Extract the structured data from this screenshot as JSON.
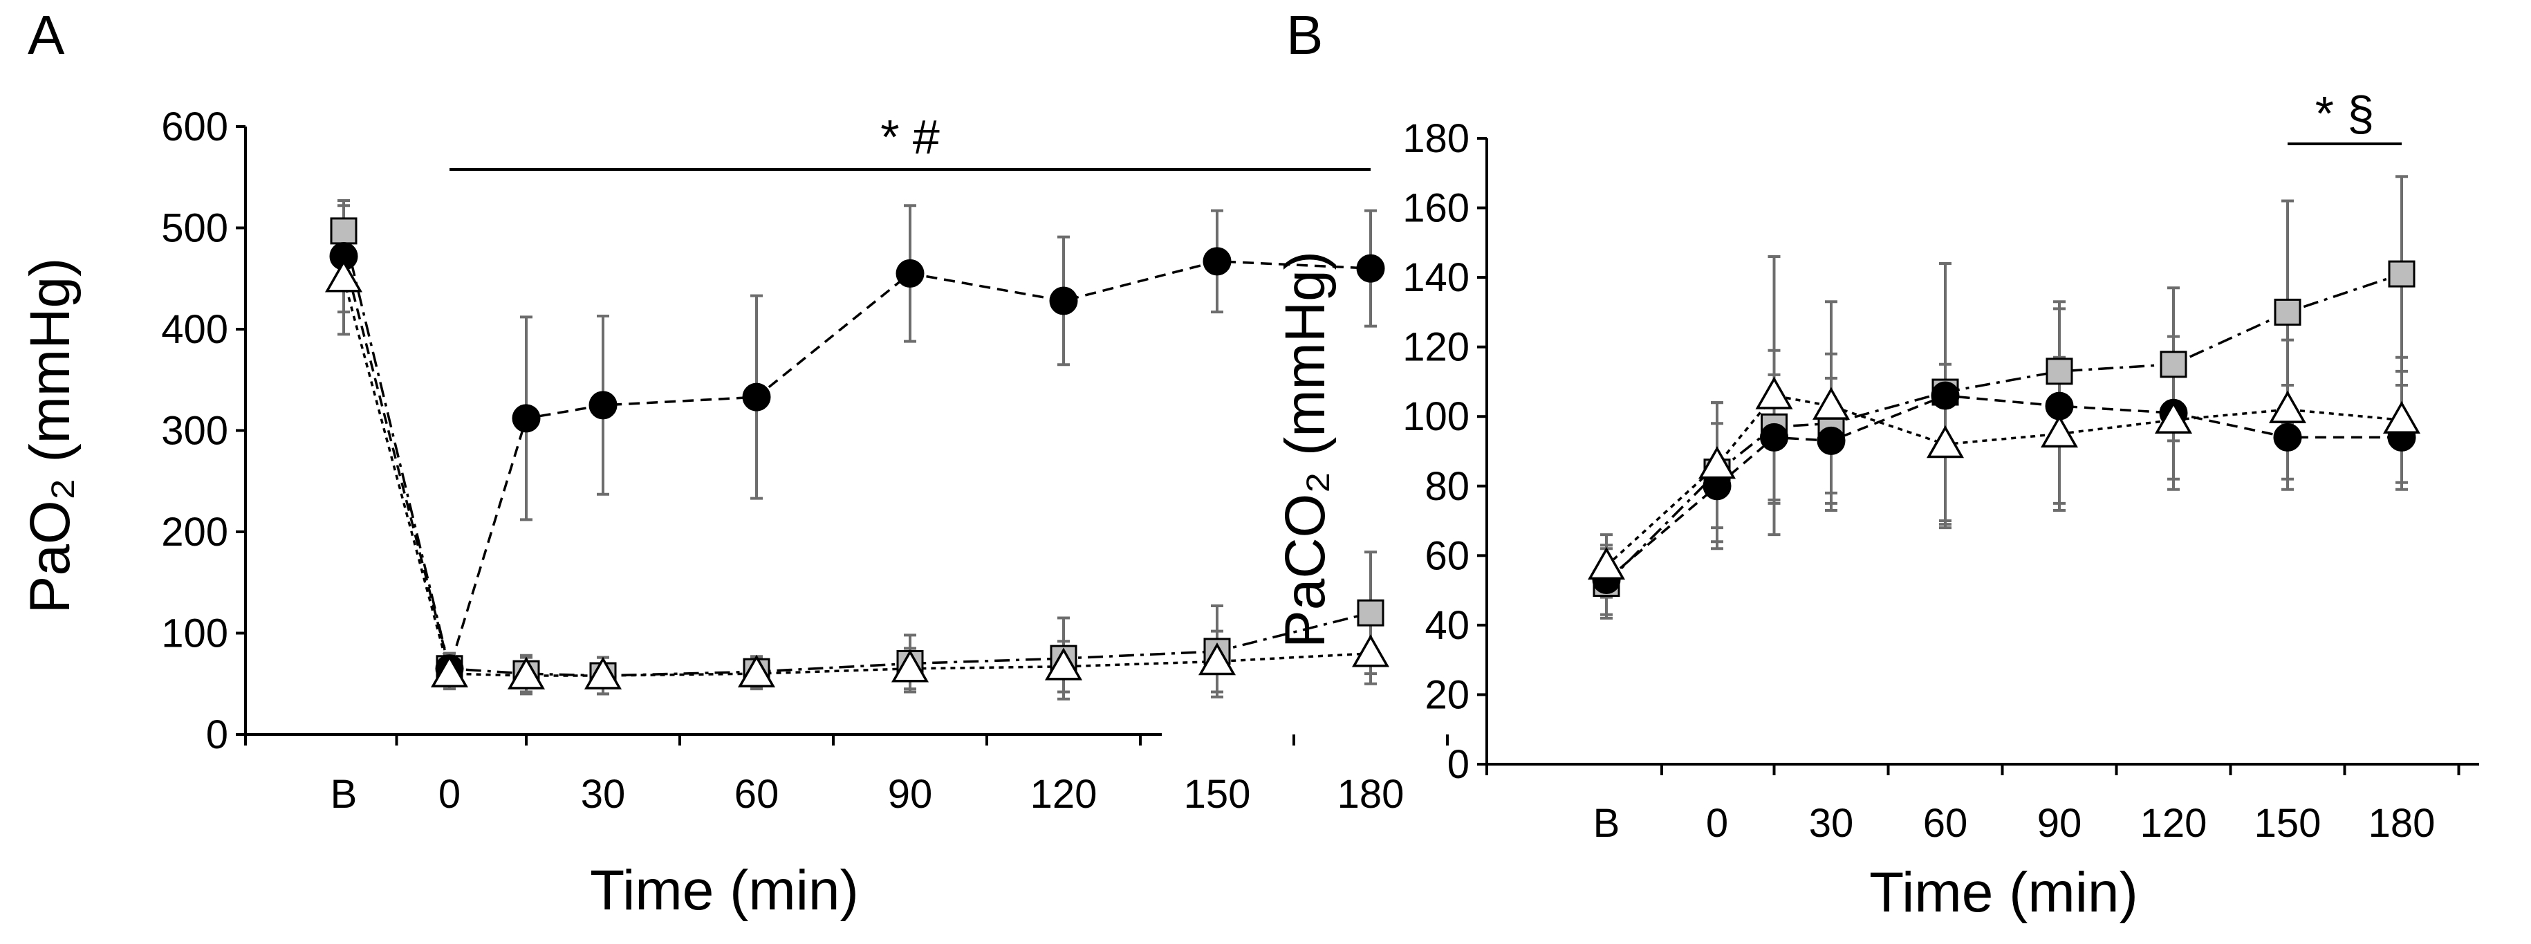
{
  "figure": {
    "markers": {
      "circle": "filled-circle",
      "square": "gray-square",
      "triangle": "open-triangle"
    },
    "colors": {
      "circle_fill": "#000000",
      "square_fill": "#bdbdbd",
      "triangle_fill": "#ffffff",
      "error_bar": "#6d6d6d"
    }
  },
  "chart_data": [
    {
      "panel": "A",
      "type": "line",
      "xlabel": "Time (min)",
      "ylabel": "PaO₂ (mmHg)",
      "categories": [
        "B",
        "0",
        "30",
        "60",
        "90",
        "120",
        "150",
        "180"
      ],
      "x": [
        "B",
        0,
        15,
        30,
        60,
        90,
        120,
        150,
        180
      ],
      "ylim": [
        0,
        600
      ],
      "yticks": [
        0,
        100,
        200,
        300,
        400,
        500,
        600
      ],
      "grid": false,
      "significance": {
        "label": "* #",
        "from": 0,
        "to": 180
      },
      "series": [
        {
          "name": "circle",
          "marker": "circle",
          "values": [
            472,
            65,
            312,
            325,
            333,
            455,
            428,
            467,
            460
          ],
          "errors": [
            55,
            15,
            100,
            88,
            100,
            67,
            63,
            50,
            57
          ]
        },
        {
          "name": "square",
          "marker": "square",
          "values": [
            497,
            65,
            60,
            58,
            62,
            70,
            75,
            82,
            120
          ],
          "errors": [
            25,
            15,
            18,
            18,
            15,
            28,
            40,
            45,
            60
          ]
        },
        {
          "name": "triangle",
          "marker": "triangle",
          "values": [
            450,
            60,
            58,
            58,
            60,
            65,
            67,
            72,
            80
          ],
          "errors": [
            55,
            15,
            18,
            18,
            15,
            20,
            25,
            30,
            30
          ]
        }
      ]
    },
    {
      "panel": "B",
      "type": "line",
      "xlabel": "Time (min)",
      "ylabel": "PaCO₂ (mmHg)",
      "categories": [
        "B",
        "0",
        "30",
        "60",
        "90",
        "120",
        "150",
        "180"
      ],
      "x": [
        "B",
        0,
        15,
        30,
        60,
        90,
        120,
        150,
        180
      ],
      "ylim": [
        0,
        180
      ],
      "yticks": [
        0,
        20,
        40,
        60,
        80,
        100,
        120,
        140,
        160,
        180
      ],
      "grid": false,
      "significance": {
        "label": "* §",
        "from": 150,
        "to": 180
      },
      "series": [
        {
          "name": "circle",
          "marker": "circle",
          "values": [
            53,
            80,
            94,
            93,
            106,
            103,
            101,
            94,
            94
          ],
          "errors": [
            10,
            18,
            18,
            18,
            38,
            28,
            22,
            15,
            15
          ]
        },
        {
          "name": "square",
          "marker": "square",
          "values": [
            52,
            84,
            97,
            98,
            107,
            113,
            115,
            130,
            141
          ],
          "errors": [
            10,
            20,
            22,
            20,
            37,
            20,
            22,
            32,
            28
          ]
        },
        {
          "name": "triangle",
          "marker": "triangle",
          "values": [
            57,
            86,
            106,
            103,
            92,
            95,
            99,
            102,
            99
          ],
          "errors": [
            9,
            18,
            40,
            30,
            23,
            22,
            17,
            20,
            18
          ]
        }
      ]
    }
  ]
}
